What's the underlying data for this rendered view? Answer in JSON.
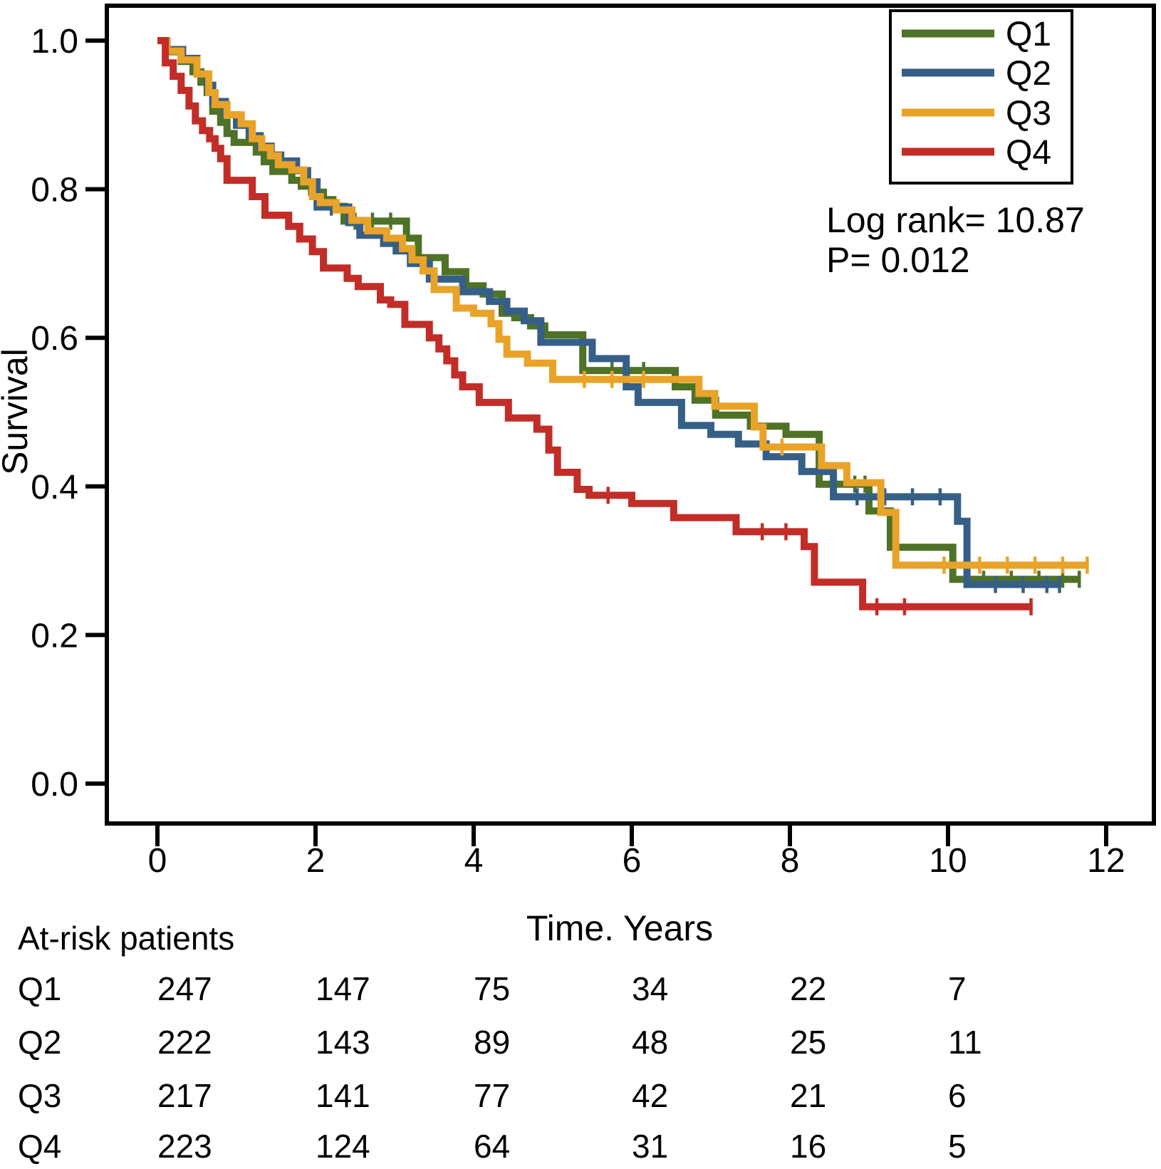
{
  "chart_data": {
    "type": "line",
    "subtype": "kaplan_meier_step_survival",
    "title": "",
    "xlabel": "Time. Years",
    "ylabel": "Survival",
    "x_ticks": [
      0,
      2,
      4,
      6,
      8,
      10,
      12
    ],
    "y_ticks": [
      1.0,
      0.8,
      0.6,
      0.4,
      0.2,
      0.0
    ],
    "xlim": [
      -0.65,
      12.6
    ],
    "ylim": [
      -0.054,
      1.047
    ],
    "grid": false,
    "legend_position": "top-right-inside",
    "annotations": [
      "Log rank= 10.87",
      "P= 0.012"
    ],
    "axis_color": "#000000",
    "series": [
      {
        "name": "Q1",
        "color": "#4e7227",
        "points": [
          [
            0,
            1.0
          ],
          [
            0.12,
            0.985
          ],
          [
            0.3,
            0.972
          ],
          [
            0.45,
            0.958
          ],
          [
            0.55,
            0.944
          ],
          [
            0.63,
            0.93
          ],
          [
            0.7,
            0.905
          ],
          [
            0.8,
            0.89
          ],
          [
            0.88,
            0.875
          ],
          [
            0.97,
            0.863
          ],
          [
            1.25,
            0.85
          ],
          [
            1.35,
            0.837
          ],
          [
            1.46,
            0.824
          ],
          [
            1.7,
            0.812
          ],
          [
            1.82,
            0.804
          ],
          [
            1.95,
            0.796
          ],
          [
            2.1,
            0.786
          ],
          [
            2.22,
            0.777
          ],
          [
            2.36,
            0.757
          ],
          [
            3.15,
            0.734
          ],
          [
            3.3,
            0.708
          ],
          [
            3.64,
            0.689
          ],
          [
            3.9,
            0.67
          ],
          [
            4.12,
            0.659
          ],
          [
            4.36,
            0.633
          ],
          [
            4.52,
            0.627
          ],
          [
            4.72,
            0.616
          ],
          [
            4.9,
            0.604
          ],
          [
            5.38,
            0.556
          ],
          [
            6.55,
            0.534
          ],
          [
            6.8,
            0.516
          ],
          [
            7.06,
            0.496
          ],
          [
            7.5,
            0.481
          ],
          [
            7.95,
            0.47
          ],
          [
            8.37,
            0.403
          ],
          [
            9.0,
            0.367
          ],
          [
            9.27,
            0.318
          ],
          [
            10.06,
            0.275
          ]
        ],
        "end_x": 11.68,
        "censors": [
          [
            2.5,
            0.757
          ],
          [
            2.72,
            0.757
          ],
          [
            2.95,
            0.757
          ],
          [
            5.75,
            0.556
          ],
          [
            6.15,
            0.556
          ],
          [
            8.82,
            0.403
          ],
          [
            8.95,
            0.403
          ],
          [
            10.45,
            0.275
          ],
          [
            10.8,
            0.275
          ],
          [
            11.15,
            0.275
          ],
          [
            11.45,
            0.275
          ],
          [
            11.66,
            0.275
          ]
        ]
      },
      {
        "name": "Q2",
        "color": "#365f87",
        "points": [
          [
            0,
            1.0
          ],
          [
            0.12,
            0.988
          ],
          [
            0.32,
            0.976
          ],
          [
            0.5,
            0.955
          ],
          [
            0.63,
            0.94
          ],
          [
            0.7,
            0.918
          ],
          [
            0.86,
            0.9
          ],
          [
            1.0,
            0.886
          ],
          [
            1.16,
            0.872
          ],
          [
            1.3,
            0.858
          ],
          [
            1.44,
            0.846
          ],
          [
            1.56,
            0.838
          ],
          [
            1.76,
            0.825
          ],
          [
            1.9,
            0.81
          ],
          [
            2.02,
            0.776
          ],
          [
            2.42,
            0.755
          ],
          [
            2.56,
            0.738
          ],
          [
            2.86,
            0.727
          ],
          [
            3.02,
            0.717
          ],
          [
            3.2,
            0.7
          ],
          [
            3.44,
            0.679
          ],
          [
            3.86,
            0.662
          ],
          [
            4.2,
            0.649
          ],
          [
            4.42,
            0.636
          ],
          [
            4.64,
            0.623
          ],
          [
            4.85,
            0.594
          ],
          [
            5.5,
            0.572
          ],
          [
            5.93,
            0.534
          ],
          [
            6.08,
            0.513
          ],
          [
            6.63,
            0.482
          ],
          [
            7.0,
            0.47
          ],
          [
            7.35,
            0.457
          ],
          [
            7.7,
            0.44
          ],
          [
            8.15,
            0.42
          ],
          [
            8.55,
            0.386
          ],
          [
            10.12,
            0.353
          ],
          [
            10.24,
            0.268
          ]
        ],
        "end_x": 11.43,
        "censors": [
          [
            2.2,
            0.776
          ],
          [
            8.85,
            0.386
          ],
          [
            9.2,
            0.386
          ],
          [
            9.55,
            0.386
          ],
          [
            9.9,
            0.386
          ],
          [
            10.6,
            0.268
          ],
          [
            10.95,
            0.268
          ],
          [
            11.25,
            0.268
          ],
          [
            11.41,
            0.268
          ]
        ]
      },
      {
        "name": "Q3",
        "color": "#e8a328",
        "points": [
          [
            0,
            1.0
          ],
          [
            0.12,
            0.986
          ],
          [
            0.3,
            0.974
          ],
          [
            0.5,
            0.955
          ],
          [
            0.65,
            0.93
          ],
          [
            0.73,
            0.914
          ],
          [
            0.88,
            0.9
          ],
          [
            1.06,
            0.888
          ],
          [
            1.2,
            0.868
          ],
          [
            1.32,
            0.856
          ],
          [
            1.43,
            0.845
          ],
          [
            1.53,
            0.833
          ],
          [
            1.7,
            0.826
          ],
          [
            1.85,
            0.81
          ],
          [
            1.96,
            0.79
          ],
          [
            2.06,
            0.782
          ],
          [
            2.26,
            0.772
          ],
          [
            2.46,
            0.758
          ],
          [
            2.66,
            0.744
          ],
          [
            2.9,
            0.734
          ],
          [
            3.1,
            0.72
          ],
          [
            3.22,
            0.705
          ],
          [
            3.36,
            0.69
          ],
          [
            3.5,
            0.665
          ],
          [
            3.78,
            0.64
          ],
          [
            4.0,
            0.633
          ],
          [
            4.22,
            0.619
          ],
          [
            4.32,
            0.598
          ],
          [
            4.42,
            0.578
          ],
          [
            4.68,
            0.566
          ],
          [
            5.0,
            0.544
          ],
          [
            6.85,
            0.525
          ],
          [
            7.05,
            0.508
          ],
          [
            7.55,
            0.48
          ],
          [
            7.66,
            0.453
          ],
          [
            8.4,
            0.428
          ],
          [
            8.72,
            0.405
          ],
          [
            9.15,
            0.365
          ],
          [
            9.34,
            0.294
          ]
        ],
        "end_x": 11.78,
        "censors": [
          [
            5.4,
            0.544
          ],
          [
            5.75,
            0.544
          ],
          [
            6.15,
            0.544
          ],
          [
            7.9,
            0.453
          ],
          [
            9.95,
            0.294
          ],
          [
            10.4,
            0.294
          ],
          [
            10.75,
            0.294
          ],
          [
            11.1,
            0.294
          ],
          [
            11.45,
            0.294
          ],
          [
            11.76,
            0.294
          ]
        ]
      },
      {
        "name": "Q4",
        "color": "#c22d28",
        "points": [
          [
            0,
            1.0
          ],
          [
            0.1,
            0.97
          ],
          [
            0.2,
            0.952
          ],
          [
            0.3,
            0.933
          ],
          [
            0.4,
            0.912
          ],
          [
            0.48,
            0.892
          ],
          [
            0.57,
            0.879
          ],
          [
            0.66,
            0.868
          ],
          [
            0.73,
            0.855
          ],
          [
            0.8,
            0.841
          ],
          [
            0.88,
            0.812
          ],
          [
            1.2,
            0.79
          ],
          [
            1.36,
            0.765
          ],
          [
            1.66,
            0.75
          ],
          [
            1.8,
            0.733
          ],
          [
            1.96,
            0.716
          ],
          [
            2.1,
            0.694
          ],
          [
            2.4,
            0.68
          ],
          [
            2.54,
            0.669
          ],
          [
            2.82,
            0.651
          ],
          [
            2.95,
            0.645
          ],
          [
            3.13,
            0.618
          ],
          [
            3.44,
            0.6
          ],
          [
            3.56,
            0.585
          ],
          [
            3.66,
            0.569
          ],
          [
            3.76,
            0.55
          ],
          [
            3.86,
            0.534
          ],
          [
            4.07,
            0.513
          ],
          [
            4.44,
            0.492
          ],
          [
            4.8,
            0.477
          ],
          [
            4.95,
            0.449
          ],
          [
            5.06,
            0.419
          ],
          [
            5.31,
            0.396
          ],
          [
            5.46,
            0.388
          ],
          [
            6.0,
            0.377
          ],
          [
            6.53,
            0.358
          ],
          [
            7.32,
            0.339
          ],
          [
            8.18,
            0.319
          ],
          [
            8.31,
            0.271
          ],
          [
            8.92,
            0.238
          ]
        ],
        "end_x": 11.07,
        "censors": [
          [
            5.7,
            0.388
          ],
          [
            7.65,
            0.339
          ],
          [
            7.95,
            0.339
          ],
          [
            9.1,
            0.238
          ],
          [
            9.45,
            0.238
          ],
          [
            11.05,
            0.238
          ]
        ]
      }
    ]
  },
  "at_risk": {
    "title": "At-risk patients",
    "times": [
      0,
      2,
      4,
      6,
      8,
      10
    ],
    "rows": [
      {
        "label": "Q1",
        "counts": [
          247,
          147,
          75,
          34,
          22,
          7
        ]
      },
      {
        "label": "Q2",
        "counts": [
          222,
          143,
          89,
          48,
          25,
          11
        ]
      },
      {
        "label": "Q3",
        "counts": [
          217,
          141,
          77,
          42,
          21,
          6
        ]
      },
      {
        "label": "Q4",
        "counts": [
          223,
          124,
          64,
          31,
          16,
          5
        ]
      }
    ]
  }
}
